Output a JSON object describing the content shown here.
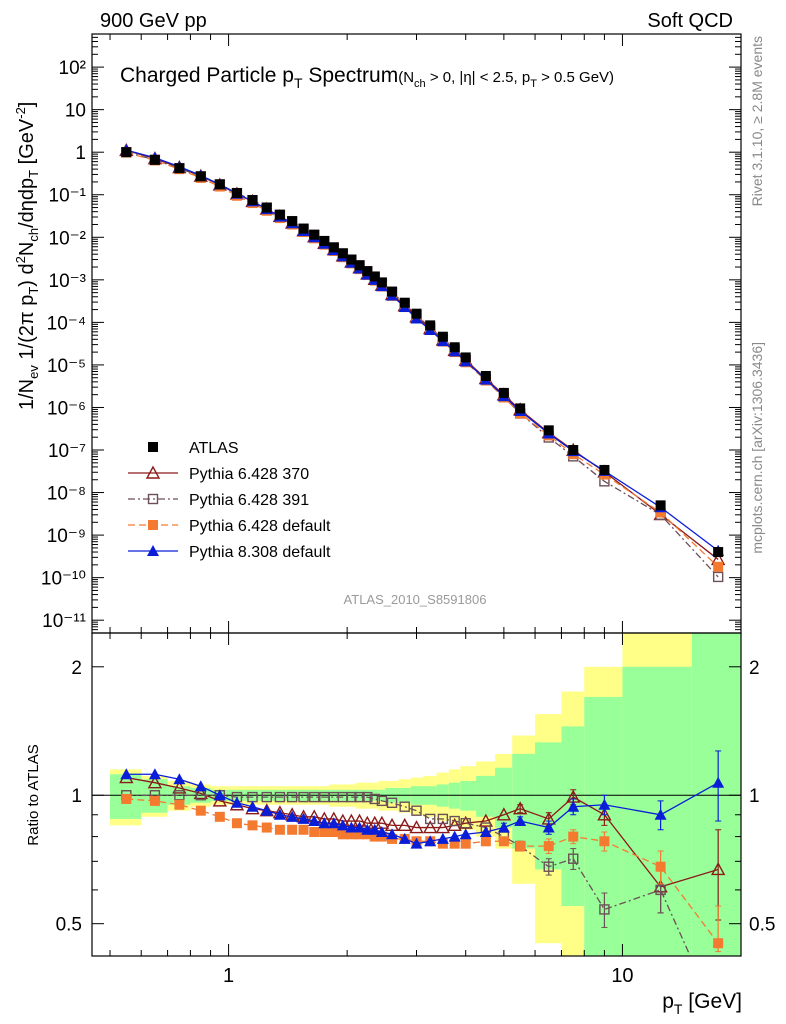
{
  "header": {
    "left": "900 GeV pp",
    "right": "Soft QCD"
  },
  "side_text": {
    "top": "Rivet 3.1.10, ≥ 2.8M events",
    "bottom": "mcplots.cern.ch [arXiv:1306.3436]"
  },
  "chart_data": [
    {
      "type": "scatter",
      "title_main": "Charged Particle p",
      "title_sub": "T",
      "title_cuts": "(N",
      "title_cuts_sub": "ch",
      "title_cuts_rest": " > 0, |η| < 2.5, p",
      "title_cuts_sub2": "T",
      "title_cuts_end": " > 0.5 GeV)",
      "ylabel": "1/N_ev 1/(2π p_T) d²N_ch/dηdp_T [GeV⁻²]",
      "xlabel": "p_T [GeV]",
      "xscale": "log",
      "yscale": "log",
      "xlim": [
        0.45,
        20
      ],
      "ylim": [
        5e-12,
        600
      ],
      "ytick_labels": [
        "10⁻¹¹",
        "10⁻¹⁰",
        "10⁻⁹",
        "10⁻⁸",
        "10⁻⁷",
        "10⁻⁶",
        "10⁻⁵",
        "10⁻⁴",
        "10⁻³",
        "10⁻²",
        "10⁻¹",
        "1",
        "10",
        "10²"
      ],
      "watermark": "ATLAS_2010_S8591806",
      "legend_position": "bottom-left",
      "x": [
        0.55,
        0.65,
        0.75,
        0.85,
        0.95,
        1.05,
        1.15,
        1.25,
        1.35,
        1.45,
        1.55,
        1.65,
        1.75,
        1.85,
        1.95,
        2.05,
        2.15,
        2.25,
        2.35,
        2.45,
        2.6,
        2.8,
        3.0,
        3.25,
        3.5,
        3.75,
        4.0,
        4.5,
        5.0,
        5.5,
        6.5,
        7.5,
        9.0,
        12.5,
        17.5
      ],
      "series": [
        {
          "name": "ATLAS",
          "color": "#000000",
          "marker": "square-filled",
          "line": "none",
          "values": [
            1.0,
            0.66,
            0.42,
            0.27,
            0.175,
            0.11,
            0.075,
            0.05,
            0.034,
            0.024,
            0.016,
            0.0115,
            0.0082,
            0.0058,
            0.0042,
            0.003,
            0.0022,
            0.0016,
            0.0012,
            0.00087,
            0.00053,
            0.00029,
            0.00016,
            8.5e-05,
            4.6e-05,
            2.6e-05,
            1.5e-05,
            5.5e-06,
            2.2e-06,
            9.5e-07,
            2.9e-07,
            1e-07,
            3.4e-08,
            5e-09,
            4e-10
          ]
        },
        {
          "name": "Pythia 6.428 370",
          "color": "#8b1a1a",
          "marker": "triangle-open",
          "line": "solid",
          "ratio": [
            1.1,
            1.07,
            1.04,
            1.01,
            0.97,
            0.95,
            0.93,
            0.92,
            0.91,
            0.9,
            0.89,
            0.89,
            0.88,
            0.88,
            0.87,
            0.87,
            0.87,
            0.86,
            0.86,
            0.86,
            0.85,
            0.85,
            0.84,
            0.84,
            0.84,
            0.85,
            0.86,
            0.87,
            0.9,
            0.93,
            0.88,
            0.99,
            0.9,
            0.61,
            0.67
          ],
          "ratio_err": [
            0,
            0,
            0,
            0,
            0,
            0,
            0,
            0,
            0,
            0,
            0,
            0,
            0,
            0,
            0,
            0,
            0,
            0,
            0,
            0,
            0,
            0,
            0,
            0,
            0,
            0,
            0,
            0,
            0,
            0.02,
            0.03,
            0.04,
            0.05,
            0.08,
            0.16
          ]
        },
        {
          "name": "Pythia 6.428 391",
          "color": "#6b5057",
          "marker": "square-open",
          "line": "dashdot",
          "ratio": [
            1.0,
            1.0,
            1.0,
            1.0,
            1.0,
            0.99,
            0.99,
            0.99,
            0.99,
            0.99,
            0.99,
            0.99,
            0.99,
            0.99,
            0.99,
            0.99,
            0.99,
            0.99,
            0.98,
            0.97,
            0.96,
            0.94,
            0.92,
            0.88,
            0.88,
            0.87,
            0.86,
            0.84,
            0.8,
            0.76,
            0.68,
            0.71,
            0.54,
            0.6,
            0.26
          ],
          "ratio_err": [
            0,
            0,
            0,
            0,
            0,
            0,
            0,
            0,
            0,
            0,
            0,
            0,
            0,
            0,
            0,
            0,
            0,
            0,
            0,
            0,
            0,
            0,
            0,
            0,
            0,
            0,
            0,
            0,
            0,
            0.02,
            0.03,
            0.04,
            0.05,
            0.07,
            0.1
          ]
        },
        {
          "name": "Pythia 6.428 default",
          "color": "#f47a30",
          "marker": "square-filled",
          "line": "dashed",
          "ratio": [
            0.98,
            0.97,
            0.95,
            0.92,
            0.89,
            0.86,
            0.85,
            0.84,
            0.83,
            0.83,
            0.83,
            0.82,
            0.82,
            0.82,
            0.81,
            0.81,
            0.81,
            0.81,
            0.8,
            0.8,
            0.79,
            0.79,
            0.78,
            0.78,
            0.77,
            0.77,
            0.77,
            0.78,
            0.78,
            0.76,
            0.76,
            0.8,
            0.78,
            0.68,
            0.45
          ],
          "ratio_err": [
            0,
            0,
            0,
            0,
            0,
            0,
            0,
            0,
            0,
            0,
            0,
            0,
            0,
            0,
            0,
            0,
            0,
            0,
            0,
            0,
            0,
            0,
            0,
            0,
            0,
            0,
            0,
            0,
            0,
            0.02,
            0.03,
            0.03,
            0.04,
            0.06,
            0.1
          ]
        },
        {
          "name": "Pythia 8.308 default",
          "color": "#0a1ed8",
          "marker": "triangle-filled",
          "line": "solid",
          "ratio": [
            1.12,
            1.12,
            1.09,
            1.05,
            1.0,
            0.96,
            0.94,
            0.92,
            0.9,
            0.89,
            0.88,
            0.87,
            0.86,
            0.86,
            0.85,
            0.84,
            0.84,
            0.83,
            0.83,
            0.82,
            0.81,
            0.79,
            0.77,
            0.78,
            0.79,
            0.8,
            0.81,
            0.82,
            0.84,
            0.87,
            0.84,
            0.94,
            0.95,
            0.9,
            1.07
          ],
          "ratio_err": [
            0,
            0,
            0,
            0,
            0,
            0,
            0,
            0,
            0,
            0,
            0,
            0,
            0,
            0,
            0,
            0,
            0,
            0,
            0,
            0,
            0,
            0,
            0,
            0,
            0,
            0,
            0,
            0,
            0.02,
            0.02,
            0.03,
            0.04,
            0.05,
            0.07,
            0.2
          ]
        }
      ]
    },
    {
      "type": "scatter",
      "ylabel": "Ratio to ATLAS",
      "xlabel": "p_T [GeV]",
      "xscale": "log",
      "yscale": "log",
      "xlim": [
        0.45,
        20
      ],
      "ylim": [
        0.42,
        2.4
      ],
      "ytick_labels": [
        "0.5",
        "1",
        "2"
      ],
      "xtick_labels": [
        "1",
        "10"
      ],
      "band_edges": [
        0.5,
        0.6,
        0.7,
        0.8,
        0.9,
        1.0,
        1.1,
        1.2,
        1.3,
        1.4,
        1.5,
        1.6,
        1.7,
        1.8,
        1.9,
        2.0,
        2.1,
        2.2,
        2.3,
        2.4,
        2.5,
        2.7,
        2.9,
        3.125,
        3.375,
        3.625,
        3.875,
        4.25,
        4.75,
        5.25,
        6.0,
        7.0,
        8.0,
        10.0,
        15.0,
        20.0
      ],
      "band_stat": [
        0.12,
        0.09,
        0.05,
        0.04,
        0.03,
        0.03,
        0.03,
        0.03,
        0.03,
        0.03,
        0.03,
        0.03,
        0.03,
        0.03,
        0.03,
        0.03,
        0.03,
        0.03,
        0.03,
        0.03,
        0.04,
        0.04,
        0.05,
        0.05,
        0.06,
        0.07,
        0.08,
        0.11,
        0.16,
        0.25,
        0.33,
        0.45,
        0.7,
        1.0,
        1.4
      ],
      "band_total": [
        0.15,
        0.11,
        0.08,
        0.06,
        0.05,
        0.05,
        0.05,
        0.05,
        0.05,
        0.05,
        0.05,
        0.05,
        0.05,
        0.06,
        0.06,
        0.06,
        0.07,
        0.07,
        0.07,
        0.08,
        0.08,
        0.09,
        0.1,
        0.11,
        0.13,
        0.15,
        0.17,
        0.2,
        0.25,
        0.38,
        0.55,
        0.75,
        1.0,
        1.4,
        1.8
      ],
      "band_colors": {
        "stat": "#99ff99",
        "total": "#ffff88"
      }
    }
  ]
}
